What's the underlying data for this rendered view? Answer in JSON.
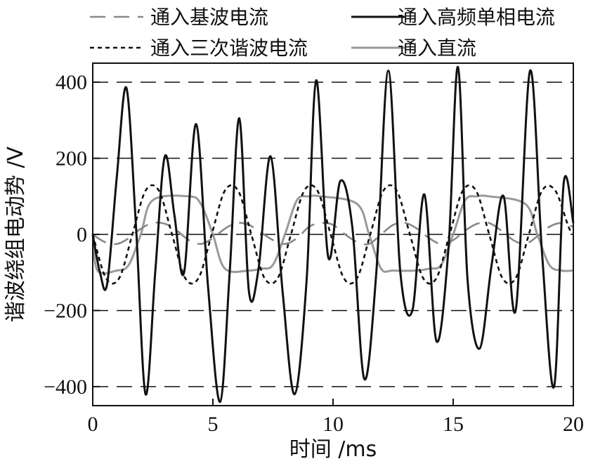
{
  "chart_data": {
    "type": "line",
    "xlabel": "时间 /ms",
    "ylabel": "谐波绕组电动势 /V",
    "xlim": [
      0,
      20
    ],
    "ylim": [
      -450,
      450
    ],
    "xticks": [
      0,
      5,
      10,
      15,
      20
    ],
    "yticks": [
      400,
      200,
      0,
      -200,
      -400
    ],
    "xtick_labels": [
      "0",
      "5",
      "10",
      "15",
      "20"
    ],
    "ytick_labels": [
      "400",
      "200",
      "0",
      "−200",
      "−400"
    ],
    "grid": "horizontal dashed at y ticks",
    "legend_position": "top, above plot, two columns",
    "series": [
      {
        "name": "通入基波电流",
        "style": "dashed",
        "color": "#888888",
        "x": [
          0,
          0.5,
          1,
          1.5,
          2,
          2.5,
          3,
          3.5,
          4,
          4.5,
          5,
          5.5,
          6,
          6.5,
          7,
          7.5,
          8,
          8.5,
          9,
          9.5,
          10,
          10.5,
          11,
          11.5,
          12,
          12.5,
          13,
          13.5,
          14,
          14.5,
          15,
          15.5,
          16,
          16.5,
          17,
          17.5,
          18,
          18.5,
          19,
          19.5,
          20
        ],
        "y": [
          0,
          -20,
          -25,
          -10,
          15,
          30,
          28,
          10,
          -15,
          -25,
          -10,
          15,
          30,
          25,
          5,
          -15,
          -25,
          -10,
          20,
          30,
          25,
          0,
          -20,
          -25,
          0,
          25,
          30,
          15,
          -10,
          -25,
          -15,
          10,
          28,
          30,
          10,
          -15,
          -25,
          -5,
          20,
          30,
          20
        ]
      },
      {
        "name": "通入高频单相电流",
        "style": "solid",
        "color": "#111111",
        "x": [
          0,
          0.3,
          0.6,
          1,
          1.4,
          1.8,
          2.2,
          2.6,
          3,
          3.4,
          3.8,
          4.3,
          4.8,
          5.3,
          5.7,
          6.1,
          6.5,
          6.9,
          7.4,
          7.9,
          8.4,
          8.9,
          9.3,
          9.8,
          10.3,
          10.8,
          11.3,
          11.8,
          12.3,
          12.8,
          13.3,
          13.8,
          14.3,
          14.8,
          15.2,
          15.6,
          16.1,
          16.6,
          17.1,
          17.6,
          18.2,
          18.7,
          19.2,
          19.6,
          20
        ],
        "y": [
          0,
          -100,
          -130,
          150,
          385,
          20,
          -420,
          -100,
          205,
          50,
          -100,
          290,
          -140,
          -440,
          -100,
          305,
          -150,
          -90,
          205,
          -150,
          -420,
          -120,
          405,
          -60,
          140,
          20,
          -380,
          -100,
          430,
          -100,
          -200,
          105,
          -280,
          -40,
          440,
          -120,
          -300,
          -80,
          100,
          -200,
          430,
          -50,
          -400,
          135,
          30
        ]
      },
      {
        "name": "通入三次谐波电流",
        "style": "dotted",
        "color": "#111111",
        "x": [
          0,
          0.55,
          1.1,
          1.65,
          2.2,
          2.75,
          3.3,
          3.85,
          4.4,
          4.95,
          5.5,
          6.05,
          6.6,
          7.15,
          7.7,
          8.25,
          8.8,
          9.35,
          9.9,
          10.45,
          11,
          11.55,
          12.1,
          12.65,
          13.2,
          13.75,
          14.3,
          14.85,
          15.4,
          15.95,
          16.5,
          17.05,
          17.6,
          18.15,
          18.7,
          19.25,
          19.8,
          20
        ],
        "y": [
          0,
          -115,
          -115,
          0,
          115,
          115,
          0,
          -115,
          -115,
          0,
          115,
          115,
          0,
          -115,
          -115,
          0,
          115,
          115,
          0,
          -115,
          -115,
          0,
          115,
          115,
          0,
          -115,
          -115,
          0,
          115,
          115,
          0,
          -115,
          -115,
          0,
          115,
          115,
          20,
          0
        ]
      },
      {
        "name": "通入直流",
        "style": "solid",
        "color": "#999999",
        "x": [
          0,
          0.2,
          1,
          1.5,
          2,
          2.5,
          4,
          4.5,
          5,
          5.5,
          6.5,
          7,
          7.5,
          8,
          8.5,
          9,
          9.5,
          11,
          11.5,
          12,
          12.5,
          13.5,
          14,
          14.5,
          15,
          15.5,
          16,
          16.5,
          18,
          18.5,
          19,
          19.5,
          20
        ],
        "y": [
          0,
          -95,
          -95,
          -80,
          0,
          90,
          100,
          80,
          0,
          -90,
          -95,
          -90,
          -80,
          0,
          90,
          100,
          100,
          80,
          0,
          -90,
          -95,
          -95,
          -90,
          -80,
          0,
          90,
          100,
          100,
          80,
          0,
          -80,
          -95,
          -95
        ]
      }
    ]
  }
}
